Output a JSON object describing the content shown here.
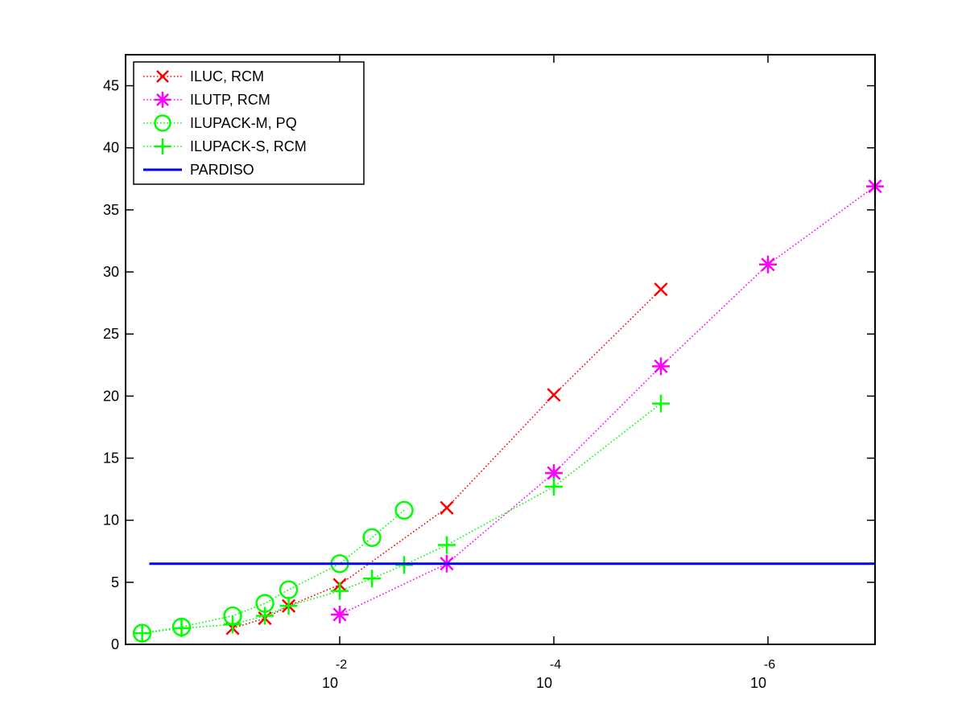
{
  "chart_data": {
    "type": "line",
    "title": "",
    "xlabel": "",
    "ylabel": "",
    "x_scale": "log",
    "x_direction": "decreasing",
    "xlim": [
      1,
      1e-07
    ],
    "ylim": [
      0,
      47.5
    ],
    "grid": false,
    "legend_position": "top-left",
    "x_ticks": [
      {
        "value": 0.01,
        "base": "10",
        "exponent": "-2"
      },
      {
        "value": 0.0001,
        "base": "10",
        "exponent": "-4"
      },
      {
        "value": 1e-06,
        "base": "10",
        "exponent": "-6"
      }
    ],
    "y_ticks": [
      {
        "value": 0,
        "label": "0"
      },
      {
        "value": 5,
        "label": "5"
      },
      {
        "value": 10,
        "label": "10"
      },
      {
        "value": 15,
        "label": "15"
      },
      {
        "value": 20,
        "label": "20"
      },
      {
        "value": 25,
        "label": "25"
      },
      {
        "value": 30,
        "label": "30"
      },
      {
        "value": 35,
        "label": "35"
      },
      {
        "value": 40,
        "label": "40"
      },
      {
        "value": 45,
        "label": "45"
      }
    ],
    "series": [
      {
        "name": "ILUC, RCM",
        "color": "#ff0000",
        "marker": "x",
        "line": "dotted",
        "x": [
          0.1,
          0.05,
          0.03,
          0.01,
          0.001,
          0.0001,
          1e-05
        ],
        "y": [
          1.3,
          2.1,
          3.1,
          4.8,
          11.0,
          20.1,
          28.6
        ]
      },
      {
        "name": "ILUTP, RCM",
        "color": "#ff00ff",
        "marker": "asterisk",
        "line": "dotted",
        "x": [
          0.01,
          0.001,
          0.0001,
          1e-05,
          1e-06,
          1e-07
        ],
        "y": [
          2.4,
          6.5,
          13.8,
          22.4,
          30.6,
          36.9
        ]
      },
      {
        "name": "ILUPACK-M, PQ",
        "color": "#00ff00",
        "marker": "circle",
        "line": "dotted",
        "x": [
          0.7,
          0.3,
          0.1,
          0.05,
          0.03,
          0.01,
          0.005,
          0.0025
        ],
        "y": [
          0.9,
          1.4,
          2.3,
          3.3,
          4.4,
          6.5,
          8.6,
          10.8
        ]
      },
      {
        "name": "ILUPACK-S, RCM",
        "color": "#00ff00",
        "marker": "plus",
        "line": "dotted",
        "x": [
          0.7,
          0.3,
          0.1,
          0.05,
          0.03,
          0.01,
          0.005,
          0.0025,
          0.001,
          0.0001,
          1e-05
        ],
        "y": [
          0.9,
          1.3,
          1.6,
          2.3,
          3.1,
          4.3,
          5.3,
          6.4,
          8.0,
          12.7,
          19.4
        ]
      },
      {
        "name": "PARDISO",
        "color": "#0000ff",
        "marker": "none",
        "line": "solid",
        "x": [
          0.6,
          1e-07
        ],
        "y": [
          6.5,
          6.5
        ]
      }
    ]
  }
}
